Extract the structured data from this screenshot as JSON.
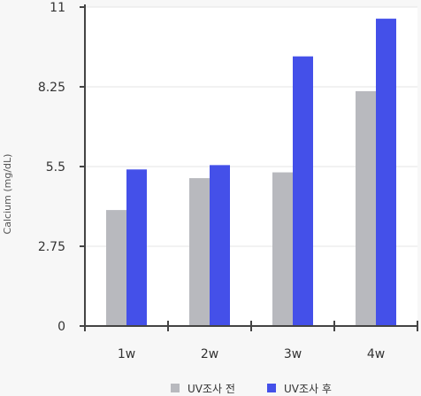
{
  "chart_data": {
    "type": "bar",
    "title": "",
    "xlabel": "",
    "ylabel": "Calcium (mg/dL)",
    "categories": [
      "1w",
      "2w",
      "3w",
      "4w"
    ],
    "series": [
      {
        "name": "UV조사 전",
        "color": "#b8b9be",
        "values": [
          4.0,
          5.1,
          5.3,
          8.1
        ]
      },
      {
        "name": "UV조사 후",
        "color": "#4450e9",
        "values": [
          5.4,
          5.55,
          9.3,
          10.6
        ]
      }
    ],
    "ylim": [
      0,
      11
    ],
    "yticks": [
      "0",
      "2.75",
      "5.5",
      "8.25",
      "11"
    ],
    "grid": true,
    "legend": "bottom"
  }
}
